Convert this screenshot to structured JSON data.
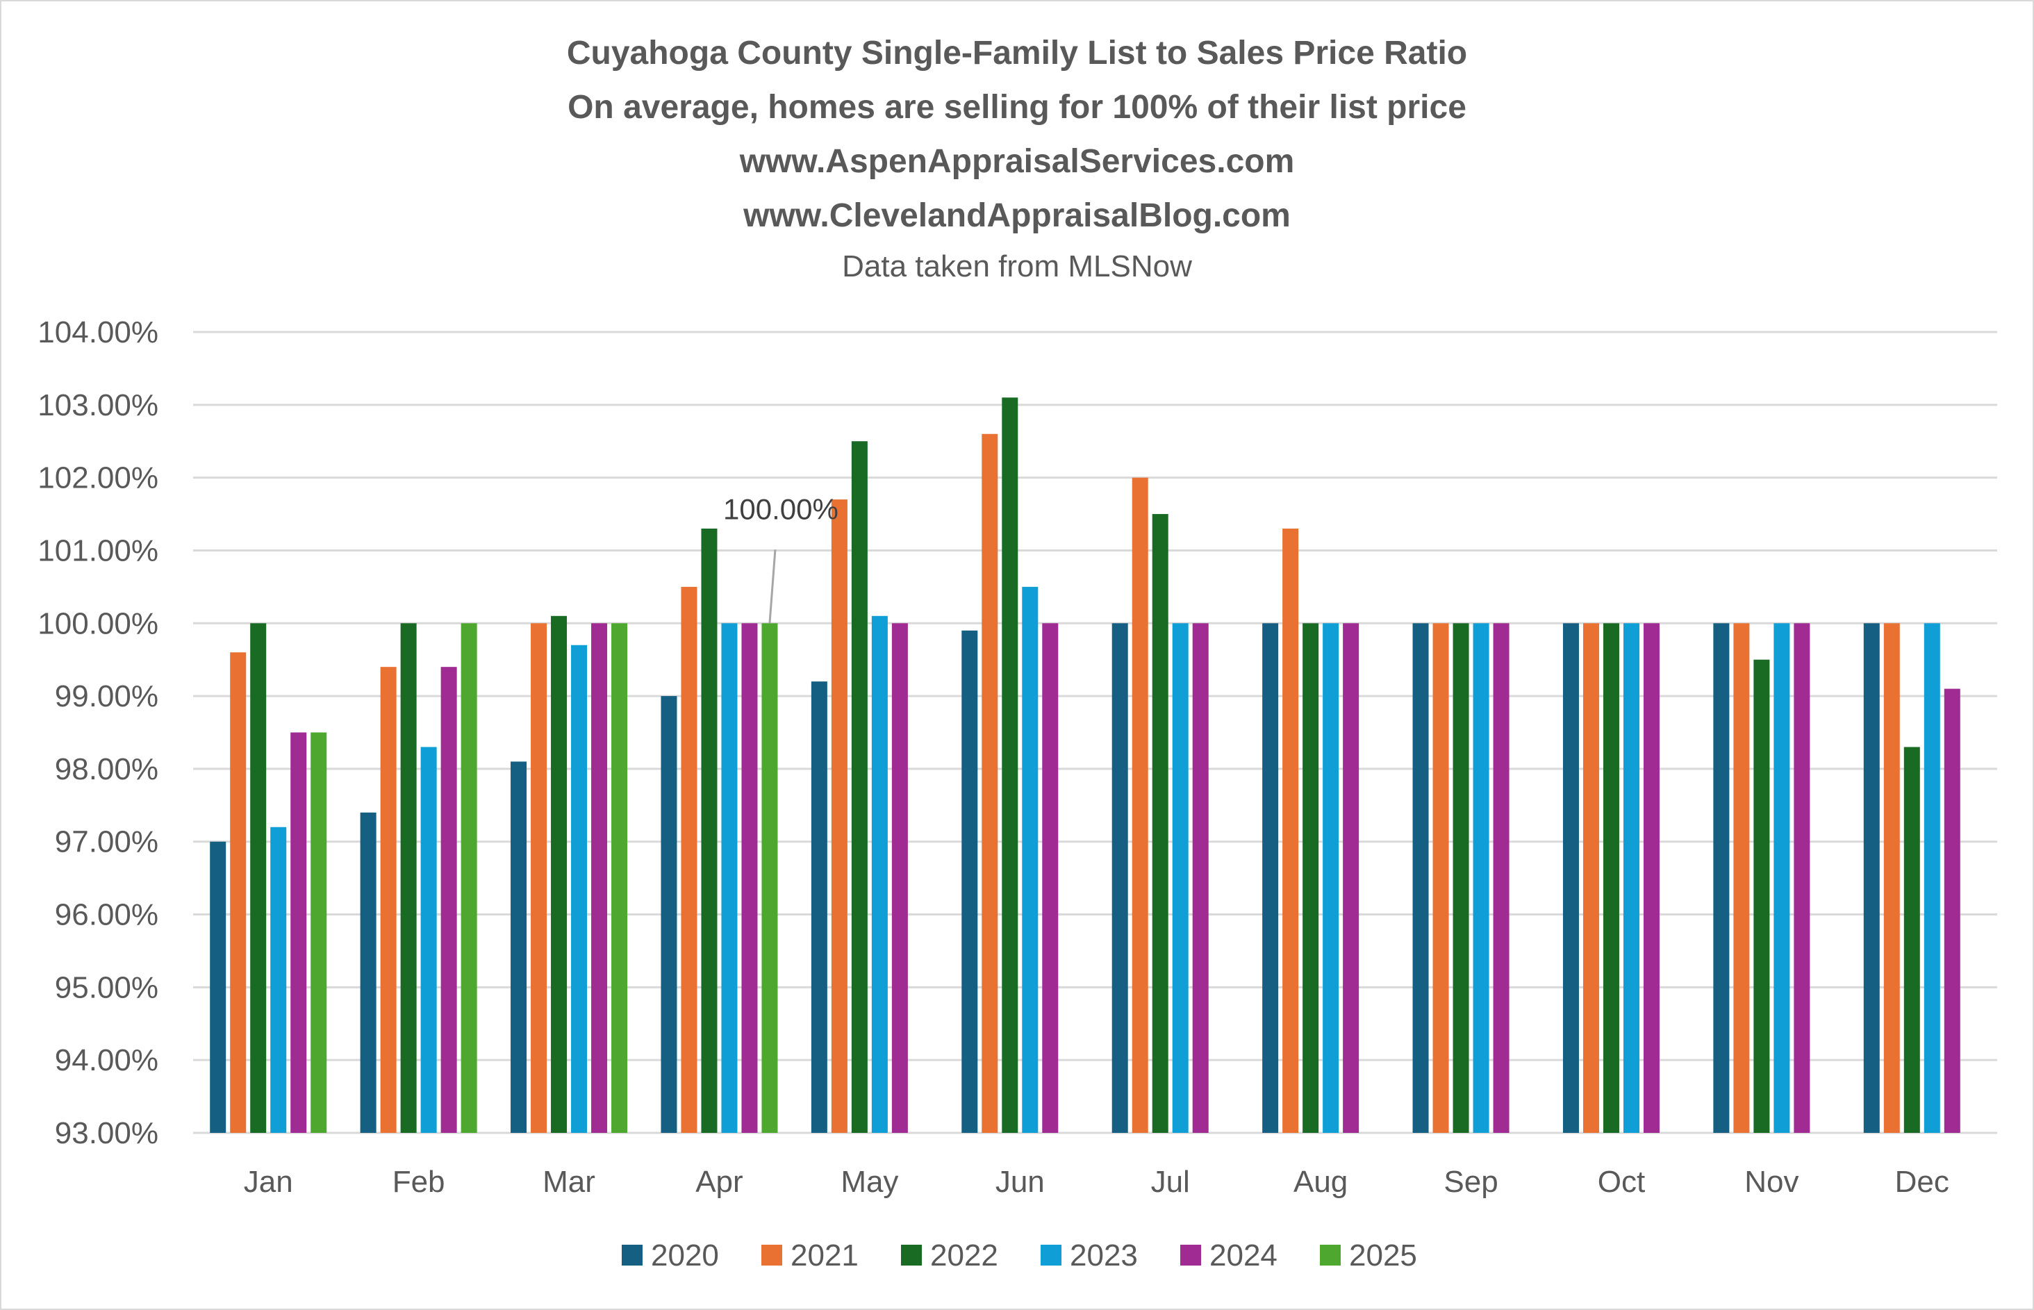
{
  "chart_data": {
    "type": "bar",
    "title_lines": [
      "Cuyahoga County Single-Family List to Sales Price Ratio",
      "On average, homes are selling for 100% of their list price",
      "www.AspenAppraisalServices.com",
      "www.ClevelandAppraisalBlog.com"
    ],
    "subtitle": "Data taken from MLSNow",
    "xlabel": "",
    "ylabel": "",
    "ylim": [
      93,
      104
    ],
    "y_ticks": [
      "93.00%",
      "94.00%",
      "95.00%",
      "96.00%",
      "97.00%",
      "98.00%",
      "99.00%",
      "100.00%",
      "101.00%",
      "102.00%",
      "103.00%",
      "104.00%"
    ],
    "grid": true,
    "legend_position": "bottom",
    "categories": [
      "Jan",
      "Feb",
      "Mar",
      "Apr",
      "May",
      "Jun",
      "Jul",
      "Aug",
      "Sep",
      "Oct",
      "Nov",
      "Dec"
    ],
    "series": [
      {
        "name": "2020",
        "color": "#156082",
        "values": [
          97.0,
          97.4,
          98.1,
          99.0,
          99.2,
          99.9,
          100,
          100,
          100,
          100,
          100,
          100
        ]
      },
      {
        "name": "2021",
        "color": "#E97132",
        "values": [
          99.6,
          99.4,
          100,
          100.5,
          101.7,
          102.6,
          102.0,
          101.3,
          100,
          100,
          100,
          100
        ]
      },
      {
        "name": "2022",
        "color": "#196B24",
        "values": [
          100,
          100,
          100.1,
          101.3,
          102.5,
          103.1,
          101.5,
          100,
          100,
          100,
          99.5,
          98.3
        ]
      },
      {
        "name": "2023",
        "color": "#0F9ED5",
        "values": [
          97.2,
          98.3,
          99.7,
          100,
          100.1,
          100.5,
          100,
          100,
          100,
          100,
          100,
          100
        ]
      },
      {
        "name": "2024",
        "color": "#A02B93",
        "values": [
          98.5,
          99.4,
          100,
          100,
          100,
          100,
          100,
          100,
          100,
          100,
          100,
          99.1
        ]
      },
      {
        "name": "2025",
        "color": "#4EA72E",
        "values": [
          98.5,
          100,
          100,
          100,
          null,
          null,
          null,
          null,
          null,
          null,
          null,
          null
        ]
      }
    ],
    "annotations": [
      {
        "text": "100.00%",
        "series": "2025",
        "category": "Apr"
      }
    ]
  }
}
